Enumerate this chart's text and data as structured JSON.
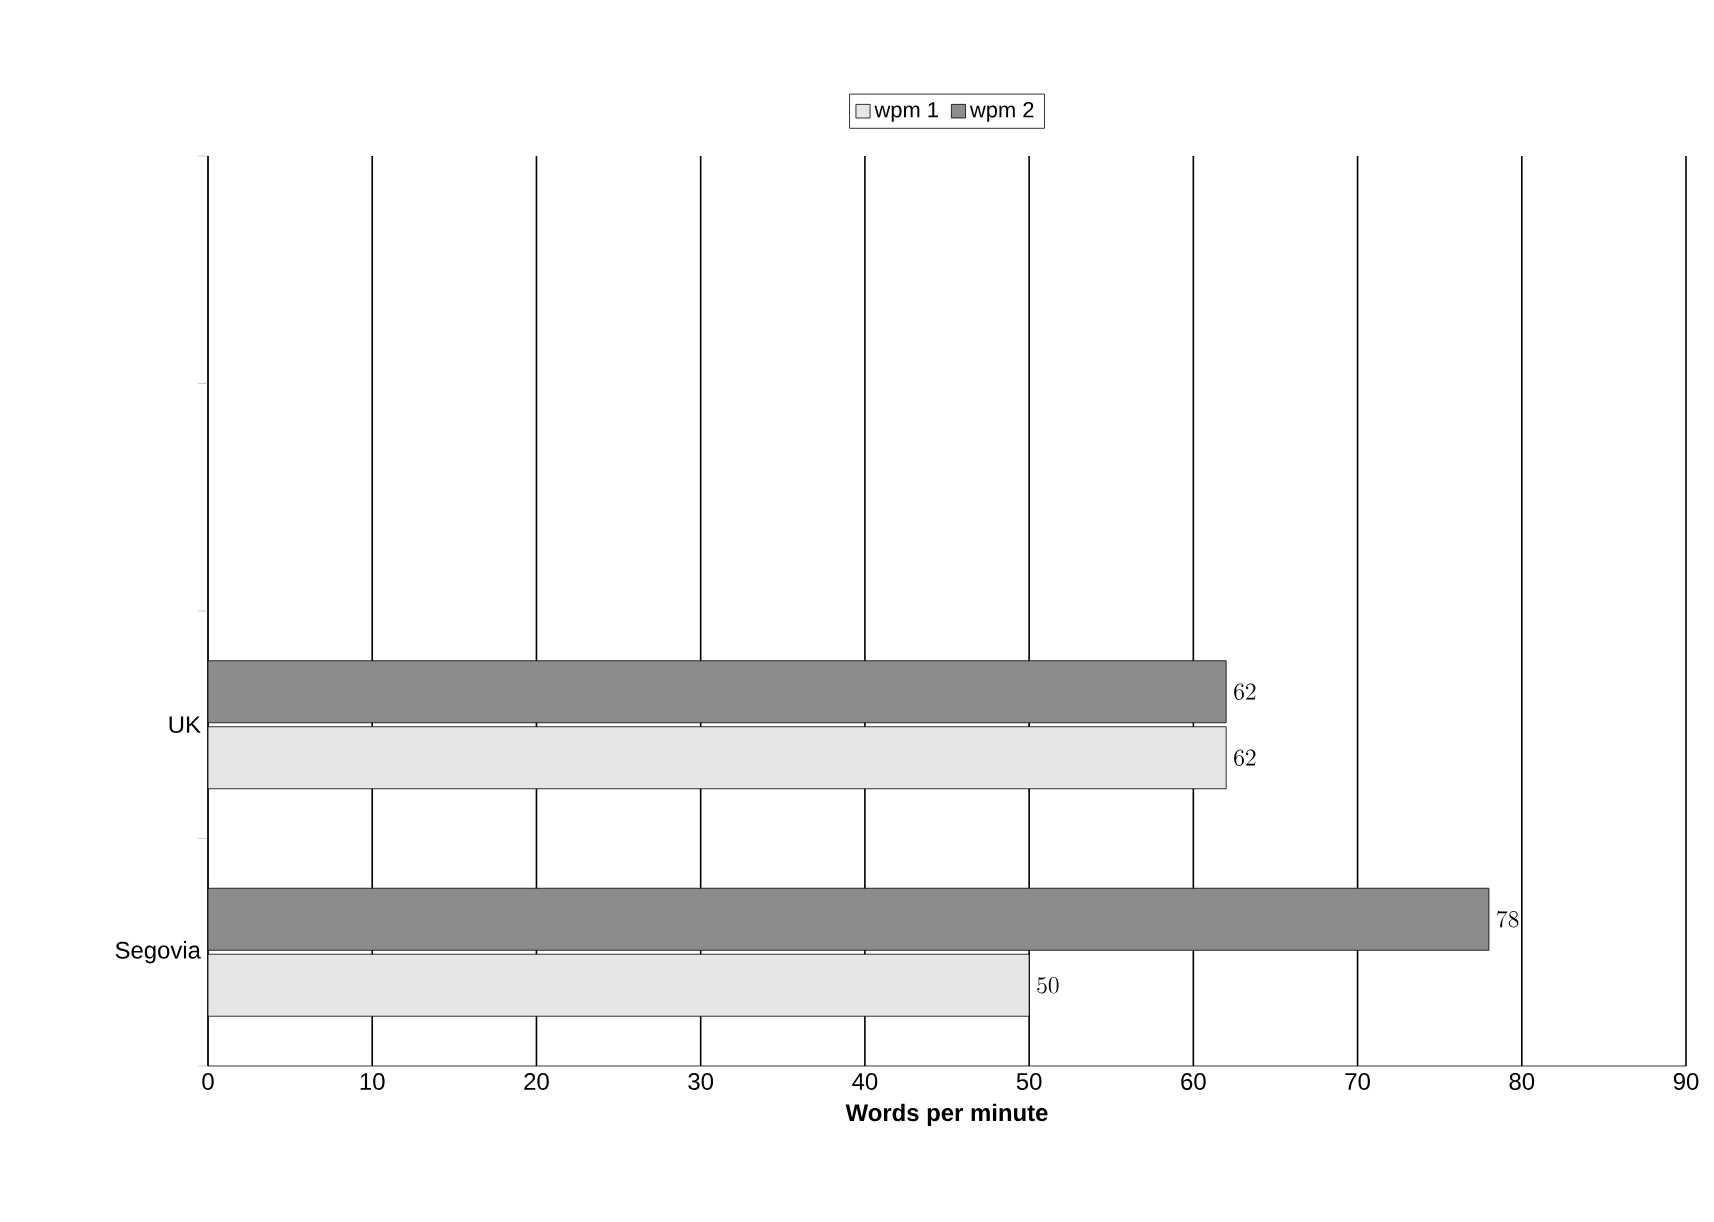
{
  "chart_data": {
    "type": "bar",
    "orientation": "horizontal",
    "xlabel": "Words per minute",
    "categories": [
      null,
      null,
      "UK",
      "Segovia"
    ],
    "series": [
      {
        "name": "wpm 1",
        "color": "#e6e6e6",
        "values": [
          null,
          null,
          62,
          50
        ]
      },
      {
        "name": "wpm 2",
        "color": "#8c8c8c",
        "values": [
          null,
          null,
          62,
          78
        ]
      }
    ],
    "xlim": [
      0,
      90
    ],
    "xticks": [
      0,
      10,
      20,
      30,
      40,
      50,
      60,
      70,
      80,
      90
    ],
    "grid": "x",
    "legend": "top",
    "data_labels": true
  }
}
